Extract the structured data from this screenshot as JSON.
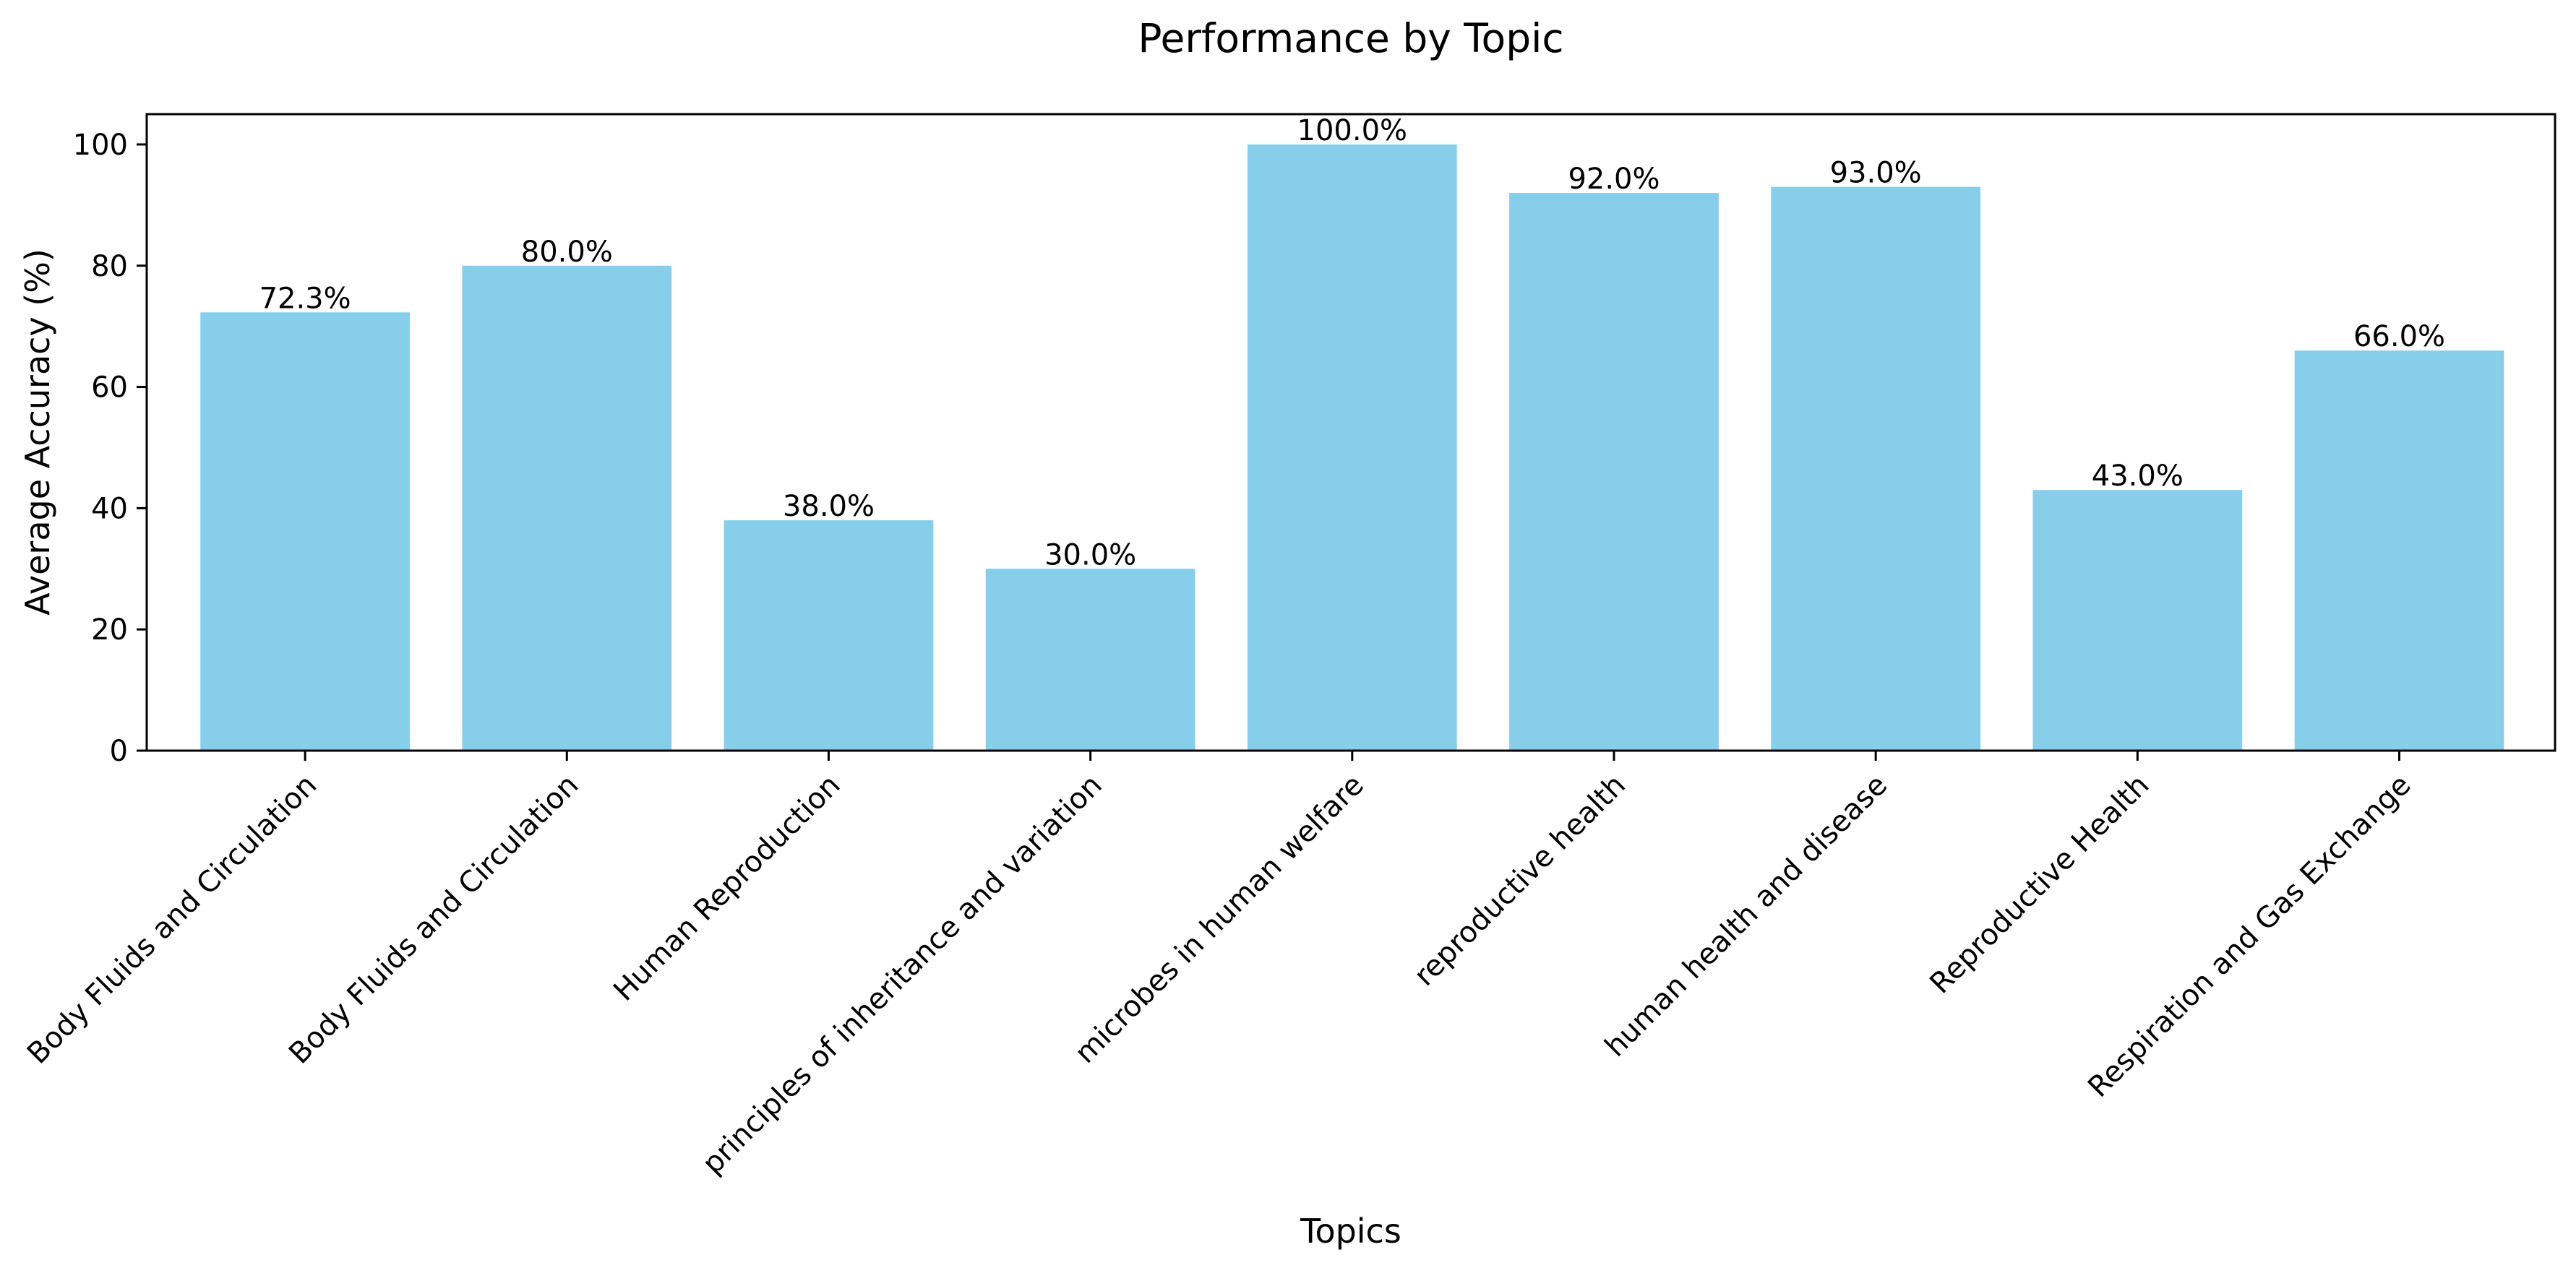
{
  "chart_data": {
    "type": "bar",
    "title": "Performance by Topic",
    "xlabel": "Topics",
    "ylabel": "Average Accuracy (%)",
    "categories": [
      "Body Fluids and Circulation",
      "Body Fluids and Circulation",
      "Human Reproduction",
      "principles of inheritance and variation",
      "microbes in human welfare",
      "reproductive health",
      "human health and disease",
      "Reproductive Health",
      "Respiration and Gas Exchange"
    ],
    "values": [
      72.3,
      80.0,
      38.0,
      30.0,
      100.0,
      92.0,
      93.0,
      43.0,
      66.0
    ],
    "value_labels": [
      "72.3%",
      "80.0%",
      "38.0%",
      "30.0%",
      "100.0%",
      "92.0%",
      "93.0%",
      "43.0%",
      "66.0%"
    ],
    "ylim": [
      0,
      105
    ],
    "yticks": [
      0,
      20,
      40,
      60,
      80,
      100
    ],
    "ytick_labels": [
      "0",
      "20",
      "40",
      "60",
      "80",
      "100"
    ],
    "grid": false,
    "legend": "none",
    "colors": {
      "bar": "#87ceeb",
      "axis": "#000000",
      "text": "#000000",
      "background": "#ffffff"
    }
  }
}
